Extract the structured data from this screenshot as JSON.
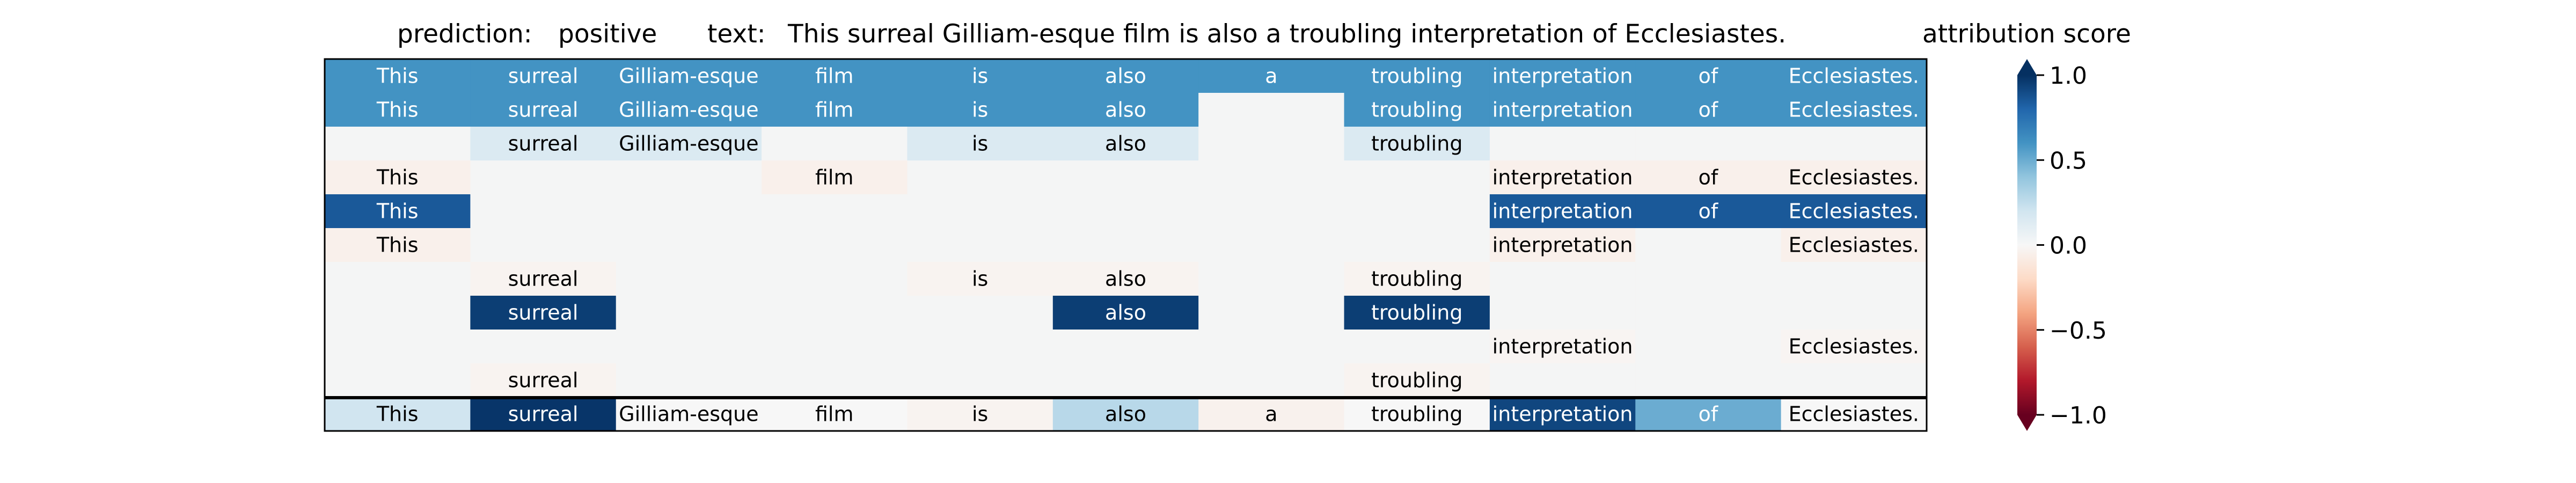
{
  "header": {
    "prediction_label": "prediction:",
    "prediction_value": "positive",
    "text_label": "text:",
    "text_value": "This surreal Gilliam-esque film is also a troubling interpretation of Ecclesiastes."
  },
  "chart_data": {
    "type": "heatmap",
    "tokens": [
      "This",
      "surreal",
      "Gilliam-esque",
      "film",
      "is",
      "also",
      "a",
      "troubling",
      "interpretation",
      "of",
      "Ecclesiastes."
    ],
    "rows": [
      [
        0.6,
        0.6,
        0.6,
        0.6,
        0.6,
        0.6,
        0.6,
        0.6,
        0.6,
        0.6,
        0.6
      ],
      [
        0.6,
        0.6,
        0.6,
        0.6,
        0.6,
        0.6,
        null,
        0.6,
        0.6,
        0.6,
        0.6
      ],
      [
        null,
        0.15,
        0.15,
        null,
        0.15,
        0.15,
        null,
        0.15,
        null,
        null,
        null
      ],
      [
        -0.05,
        null,
        null,
        -0.05,
        null,
        null,
        null,
        null,
        -0.05,
        -0.05,
        -0.05
      ],
      [
        0.85,
        null,
        null,
        null,
        null,
        null,
        null,
        null,
        0.85,
        0.85,
        0.85
      ],
      [
        -0.05,
        null,
        null,
        null,
        null,
        null,
        null,
        null,
        -0.05,
        null,
        -0.05
      ],
      [
        null,
        -0.03,
        null,
        null,
        -0.03,
        -0.03,
        null,
        -0.03,
        null,
        null,
        null
      ],
      [
        null,
        0.95,
        null,
        null,
        null,
        0.95,
        null,
        0.95,
        null,
        null,
        null
      ],
      [
        null,
        null,
        null,
        null,
        null,
        null,
        null,
        null,
        -0.02,
        null,
        -0.02
      ],
      [
        null,
        -0.03,
        null,
        null,
        null,
        null,
        null,
        -0.03,
        null,
        null,
        null
      ],
      [
        0.2,
        0.98,
        0.0,
        0.0,
        -0.03,
        0.28,
        -0.04,
        0.0,
        0.92,
        0.5,
        0.0
      ]
    ],
    "colorbar": {
      "title": "attribution score",
      "min": -1.0,
      "max": 1.0,
      "ticks": [
        1.0,
        0.5,
        0.0,
        -0.5,
        -1.0
      ],
      "tick_labels": [
        "1.0",
        "0.5",
        "0.0",
        "−0.5",
        "−1.0"
      ],
      "colormap": "RdBu",
      "extend": "both"
    }
  }
}
